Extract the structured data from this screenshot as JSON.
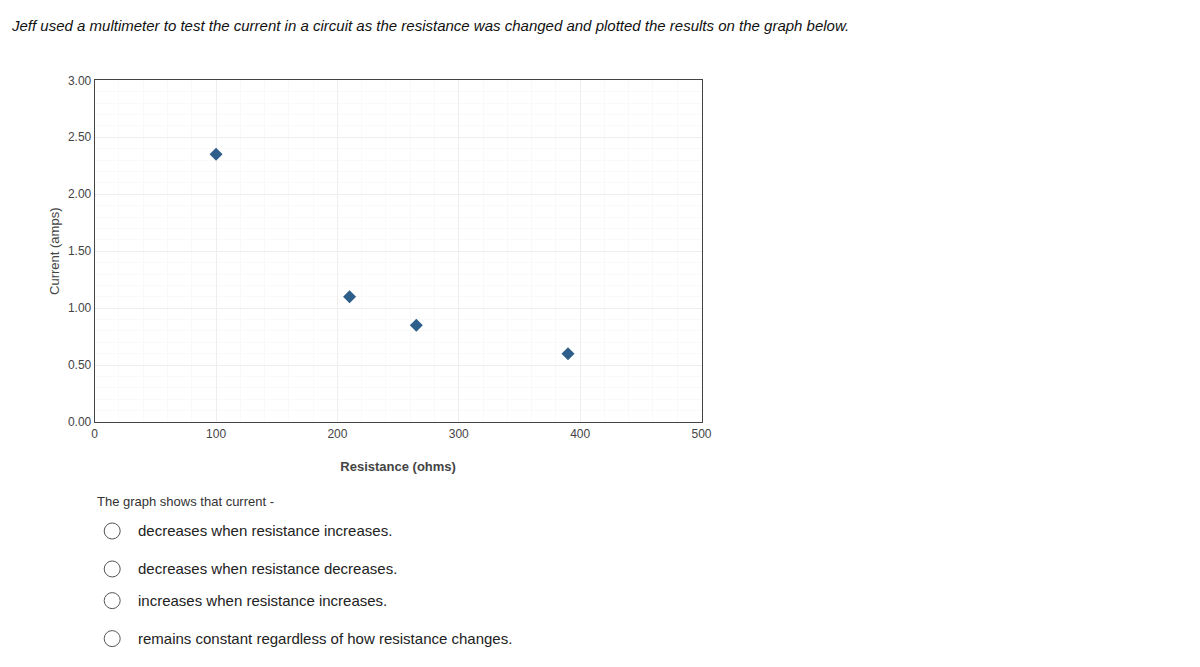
{
  "chart_data": {
    "type": "scatter",
    "title": "Jeff used a multimeter to test the current in a circuit as the resistance was changed and plotted the results on the graph below.",
    "x_label": "Resistance (ohms)",
    "y_label": "Current (amps)",
    "x": [
      100,
      210,
      265,
      390
    ],
    "values": [
      2.35,
      1.1,
      0.85,
      0.6
    ],
    "color": "#2e5f8a",
    "marker": "diamond",
    "xlim": [
      0,
      500
    ],
    "ylim": [
      0,
      3
    ],
    "xticks": [
      0,
      100,
      200,
      300,
      400,
      500
    ],
    "yticks": [
      {
        "value": 0,
        "label": "0.00"
      },
      {
        "value": 0.5,
        "label": "0.50"
      },
      {
        "value": 1,
        "label": "1.00"
      },
      {
        "value": 1.5,
        "label": "1.50"
      },
      {
        "value": 2,
        "label": "2.00"
      },
      {
        "value": 2.5,
        "label": "2.50"
      },
      {
        "value": 3,
        "label": "3.00"
      }
    ],
    "grid": true,
    "annotations": [
      "The graph shows that current -",
      "decreases when resistance increases.",
      "decreases when resistance decreases.",
      "increases when resistance increases.",
      "remains constant regardless of how resistance changes."
    ]
  }
}
